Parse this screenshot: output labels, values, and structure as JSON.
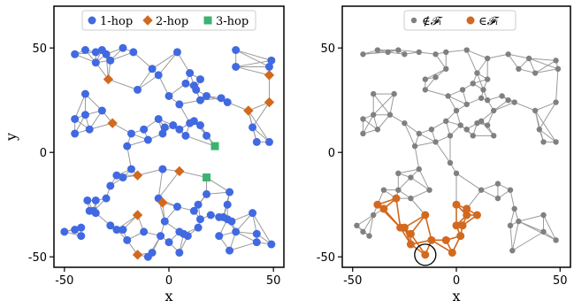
{
  "chart_data": [
    {
      "type": "scatter",
      "xlabel": "x",
      "ylabel": "y",
      "xlim": [
        -55,
        55
      ],
      "ylim": [
        -55,
        70
      ],
      "xticks": [
        -50,
        0,
        50
      ],
      "yticks": [
        -50,
        0,
        50
      ],
      "grid": false,
      "legend_placement": "top",
      "colors": {
        "1-hop": "#4169e1",
        "2-hop": "#d2691e",
        "3-hop": "#3cb371",
        "edge": "#9a9a9a"
      },
      "series": [
        {
          "name": "1-hop",
          "marker": "circle",
          "points": [
            [
              -45,
              47
            ],
            [
              -40,
              49
            ],
            [
              -35,
              48
            ],
            [
              -32,
              49
            ],
            [
              -30,
              47
            ],
            [
              -22,
              50
            ],
            [
              -17,
              48
            ],
            [
              -35,
              43
            ],
            [
              -28,
              44
            ],
            [
              -8,
              40
            ],
            [
              4,
              48
            ],
            [
              -40,
              28
            ],
            [
              -45,
              16
            ],
            [
              -40,
              18
            ],
            [
              -38,
              11
            ],
            [
              -45,
              9
            ],
            [
              -32,
              20
            ],
            [
              -15,
              30
            ],
            [
              -5,
              37
            ],
            [
              0,
              27
            ],
            [
              5,
              23
            ],
            [
              8,
              33
            ],
            [
              13,
              30
            ],
            [
              15,
              35
            ],
            [
              12,
              32
            ],
            [
              15,
              25
            ],
            [
              18,
              27
            ],
            [
              10,
              38
            ],
            [
              25,
              26
            ],
            [
              28,
              24
            ],
            [
              32,
              49
            ],
            [
              32,
              41
            ],
            [
              48,
              41
            ],
            [
              49,
              44
            ],
            [
              40,
              12
            ],
            [
              42,
              5
            ],
            [
              48,
              5
            ],
            [
              -18,
              9
            ],
            [
              -12,
              11
            ],
            [
              -5,
              16
            ],
            [
              -2,
              12
            ],
            [
              -3,
              9
            ],
            [
              2,
              13
            ],
            [
              5,
              11
            ],
            [
              8,
              8
            ],
            [
              10,
              14
            ],
            [
              12,
              15
            ],
            [
              15,
              13
            ],
            [
              18,
              8
            ],
            [
              -20,
              3
            ],
            [
              -10,
              6
            ],
            [
              -3,
              -8
            ],
            [
              -18,
              -8
            ],
            [
              -22,
              -12
            ],
            [
              -28,
              -16
            ],
            [
              -35,
              -23
            ],
            [
              -30,
              -22
            ],
            [
              -39,
              -23
            ],
            [
              -36,
              -28
            ],
            [
              -38,
              -28
            ],
            [
              -28,
              -35
            ],
            [
              -25,
              -37
            ],
            [
              -22,
              -37
            ],
            [
              -12,
              -38
            ],
            [
              -8,
              -48
            ],
            [
              -2,
              -33
            ],
            [
              -4,
              -40
            ],
            [
              0,
              -43
            ],
            [
              4,
              -26
            ],
            [
              5,
              -38
            ],
            [
              5,
              -48
            ],
            [
              9,
              -40
            ],
            [
              12,
              -28
            ],
            [
              14,
              -25
            ],
            [
              15,
              -32
            ],
            [
              18,
              -20
            ],
            [
              20,
              -30
            ],
            [
              24,
              -31
            ],
            [
              26,
              -31
            ],
            [
              28,
              -25
            ],
            [
              28,
              -32
            ],
            [
              32,
              -38
            ],
            [
              29,
              -19
            ],
            [
              24,
              -40
            ],
            [
              -45,
              -37
            ],
            [
              -42,
              -40
            ],
            [
              -25,
              -11
            ],
            [
              -5,
              -22
            ],
            [
              7,
              -39
            ],
            [
              14,
              -36
            ],
            [
              30,
              -33
            ],
            [
              40,
              -29
            ],
            [
              42,
              -39
            ],
            [
              42,
              -43
            ],
            [
              -10,
              -50
            ],
            [
              -20,
              -42
            ],
            [
              -35,
              -29
            ],
            [
              -42,
              -36
            ],
            [
              -50,
              -38
            ],
            [
              49,
              -44
            ],
            [
              29,
              -47
            ]
          ]
        },
        {
          "name": "2-hop",
          "marker": "diamond",
          "points": [
            [
              -29,
              35
            ],
            [
              -27,
              14
            ],
            [
              -15,
              -11
            ],
            [
              -15,
              -30
            ],
            [
              -15,
              -49
            ],
            [
              -3,
              -24
            ],
            [
              5,
              -9
            ],
            [
              38,
              20
            ],
            [
              48,
              24
            ],
            [
              48,
              37
            ]
          ]
        },
        {
          "name": "3-hop",
          "marker": "square",
          "points": [
            [
              22,
              3
            ],
            [
              18,
              -12
            ]
          ]
        }
      ]
    },
    {
      "type": "scatter",
      "xlabel": "x",
      "ylabel": "",
      "xlim": [
        -55,
        55
      ],
      "ylim": [
        -55,
        70
      ],
      "xticks": [
        -50,
        0,
        50
      ],
      "yticks": [
        -50,
        0,
        50
      ],
      "grid": false,
      "legend_placement": "top",
      "colors": {
        "not_in": "#808080",
        "in": "#d2691e",
        "edge": "#9a9a9a",
        "edge_in": "#d2691e",
        "circle": "#000000"
      },
      "series": [
        {
          "name": "∉𝓕ᵢ",
          "marker": "circle",
          "points": [
            [
              -45,
              47
            ],
            [
              -38,
              49
            ],
            [
              -33,
              48
            ],
            [
              -28,
              49
            ],
            [
              -25,
              47
            ],
            [
              -18,
              48
            ],
            [
              -10,
              47
            ],
            [
              -5,
              48
            ],
            [
              5,
              49
            ],
            [
              15,
              45
            ],
            [
              25,
              47
            ],
            [
              30,
              40
            ],
            [
              35,
              45
            ],
            [
              38,
              38
            ],
            [
              48,
              44
            ],
            [
              49,
              40
            ],
            [
              -40,
              28
            ],
            [
              -45,
              16
            ],
            [
              -40,
              18
            ],
            [
              -38,
              11
            ],
            [
              -45,
              9
            ],
            [
              -32,
              18
            ],
            [
              -30,
              28
            ],
            [
              -25,
              14
            ],
            [
              -15,
              30
            ],
            [
              -15,
              35
            ],
            [
              -10,
              36
            ],
            [
              -5,
              40
            ],
            [
              -4,
              27
            ],
            [
              3,
              30
            ],
            [
              0,
              20
            ],
            [
              5,
              23
            ],
            [
              8,
              33
            ],
            [
              13,
              30
            ],
            [
              10,
              38
            ],
            [
              15,
              35
            ],
            [
              12,
              26
            ],
            [
              15,
              25
            ],
            [
              18,
              20
            ],
            [
              22,
              27
            ],
            [
              25,
              25
            ],
            [
              28,
              24
            ],
            [
              38,
              20
            ],
            [
              48,
              24
            ],
            [
              40,
              11
            ],
            [
              42,
              5
            ],
            [
              48,
              5
            ],
            [
              -18,
              9
            ],
            [
              -12,
              11
            ],
            [
              -5,
              15
            ],
            [
              -3,
              8
            ],
            [
              2,
              13
            ],
            [
              5,
              11
            ],
            [
              8,
              8
            ],
            [
              10,
              14
            ],
            [
              12,
              15
            ],
            [
              15,
              13
            ],
            [
              18,
              8
            ],
            [
              -20,
              3
            ],
            [
              -10,
              5
            ],
            [
              -3,
              -5
            ],
            [
              -18,
              -8
            ],
            [
              -22,
              -12
            ],
            [
              -28,
              -10
            ],
            [
              -35,
              -18
            ],
            [
              -28,
              -18
            ],
            [
              -22,
              -22
            ],
            [
              -13,
              -18
            ],
            [
              0,
              -10
            ],
            [
              12,
              -18
            ],
            [
              20,
              -15
            ],
            [
              20,
              -22
            ],
            [
              26,
              -18
            ],
            [
              28,
              -27
            ],
            [
              26,
              -35
            ],
            [
              30,
              -33
            ],
            [
              27,
              -47
            ],
            [
              42,
              -30
            ],
            [
              42,
              -38
            ],
            [
              48,
              -42
            ],
            [
              -40,
              -30
            ],
            [
              -42,
              -40
            ],
            [
              -48,
              -35
            ],
            [
              -45,
              -38
            ]
          ]
        },
        {
          "name": "∈𝓕ᵢ",
          "marker": "circle",
          "points": [
            [
              -38,
              -25
            ],
            [
              -35,
              -27
            ],
            [
              -29,
              -22
            ],
            [
              -27,
              -36
            ],
            [
              -25,
              -36
            ],
            [
              -22,
              -39
            ],
            [
              -15,
              -30
            ],
            [
              -15,
              -49
            ],
            [
              -12,
              -42
            ],
            [
              -5,
              -42
            ],
            [
              -2,
              -48
            ],
            [
              0,
              -25
            ],
            [
              0,
              -35
            ],
            [
              2,
              -40
            ],
            [
              3,
              -35
            ],
            [
              5,
              -30
            ],
            [
              5,
              -27
            ],
            [
              10,
              -30
            ],
            [
              -22,
              -44
            ]
          ]
        }
      ],
      "annotations": [
        {
          "type": "circle",
          "center": [
            -15,
            -49
          ]
        }
      ]
    }
  ],
  "panels": [
    {
      "legend": [
        "1-hop",
        "2-hop",
        "3-hop"
      ],
      "xlabel": "x",
      "ylabel": "y",
      "tick_labels_x": [
        "-50",
        "0",
        "50"
      ],
      "tick_labels_y": [
        "-50",
        "0",
        "50"
      ]
    },
    {
      "legend": [
        "∉𝓕ᵢ",
        "∈𝓕ᵢ"
      ],
      "xlabel": "x",
      "tick_labels_x": [
        "-50",
        "0",
        "50"
      ],
      "tick_labels_y": [
        "-50",
        "0",
        "50"
      ]
    }
  ]
}
